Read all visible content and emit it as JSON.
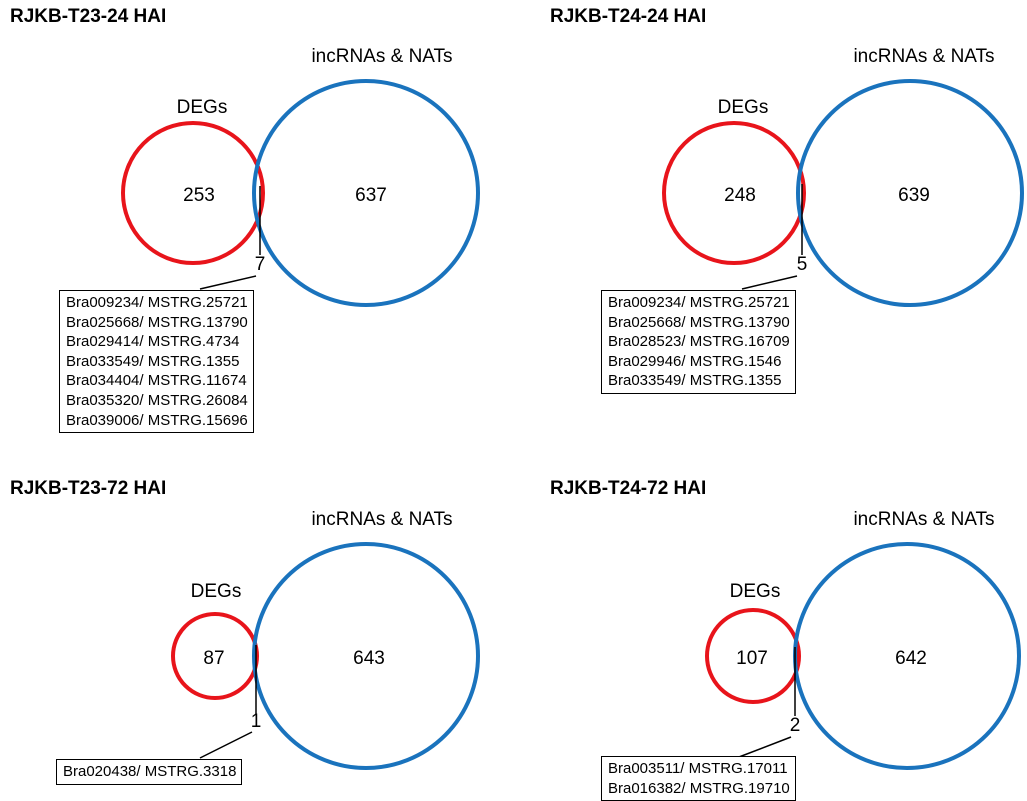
{
  "colors": {
    "degs": "#e8141b",
    "incrnas": "#1a73bd"
  },
  "panels": [
    {
      "title": "RJKB-T23-24 HAI",
      "degs_label": "DEGs",
      "incrnas_label": "incRNAs & NATs",
      "degs_only": "253",
      "incrnas_only": "637",
      "overlap": "7",
      "genes": [
        "Bra009234/ MSTRG.25721",
        "Bra025668/ MSTRG.13790",
        "Bra029414/ MSTRG.4734",
        "Bra033549/ MSTRG.1355",
        "Bra034404/ MSTRG.11674",
        "Bra035320/ MSTRG.26084",
        "Bra039006/ MSTRG.15696"
      ]
    },
    {
      "title": "RJKB-T24-24 HAI",
      "degs_label": "DEGs",
      "incrnas_label": "incRNAs & NATs",
      "degs_only": "248",
      "incrnas_only": "639",
      "overlap": "5",
      "genes": [
        "Bra009234/ MSTRG.25721",
        "Bra025668/ MSTRG.13790",
        "Bra028523/ MSTRG.16709",
        "Bra029946/ MSTRG.1546",
        "Bra033549/ MSTRG.1355"
      ]
    },
    {
      "title": "RJKB-T23-72 HAI",
      "degs_label": "DEGs",
      "incrnas_label": "incRNAs & NATs",
      "degs_only": "87",
      "incrnas_only": "643",
      "overlap": "1",
      "genes": [
        "Bra020438/ MSTRG.3318"
      ]
    },
    {
      "title": "RJKB-T24-72 HAI",
      "degs_label": "DEGs",
      "incrnas_label": "incRNAs & NATs",
      "degs_only": "107",
      "incrnas_only": "642",
      "overlap": "2",
      "genes": [
        "Bra003511/ MSTRG.17011",
        "Bra016382/ MSTRG.19710"
      ]
    }
  ]
}
